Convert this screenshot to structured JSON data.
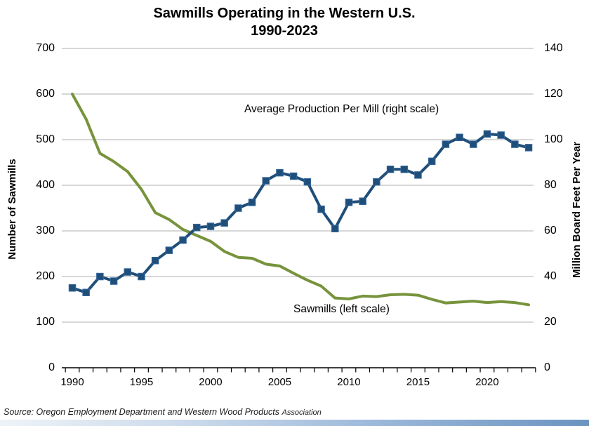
{
  "title": {
    "line1": "Sawmills Operating in the Western U.S.",
    "line2": "1990-2023"
  },
  "axes": {
    "left": {
      "label": "Number of Sawmills",
      "ticks": [
        700,
        600,
        500,
        400,
        300,
        200,
        100,
        0
      ]
    },
    "right": {
      "label": "Million Board Feet Per Year",
      "ticks": [
        140,
        120,
        100,
        80,
        60,
        40,
        20,
        0
      ]
    },
    "x": {
      "labeled_ticks": [
        1990,
        1995,
        2000,
        2005,
        2010,
        2015,
        2020
      ]
    }
  },
  "annotations": {
    "production": "Average Production Per Mill (right scale)",
    "sawmills": "Sawmills (left scale)"
  },
  "source": {
    "main": "Source: Oregon Employment Department and Western Wood Products",
    "small": "Association"
  },
  "colors": {
    "sawmills_line": "#77933C",
    "production_line": "#1F4E79",
    "production_marker_edge": "#35689E",
    "gridline": "#BFBFBF",
    "axis": "#000000"
  },
  "chart_data": {
    "type": "line",
    "title": "Sawmills Operating in the Western U.S. 1990-2023",
    "x": [
      1990,
      1991,
      1992,
      1993,
      1994,
      1995,
      1996,
      1997,
      1998,
      1999,
      2000,
      2001,
      2002,
      2003,
      2004,
      2005,
      2006,
      2007,
      2008,
      2009,
      2010,
      2011,
      2012,
      2013,
      2014,
      2015,
      2016,
      2017,
      2018,
      2019,
      2020,
      2021,
      2022,
      2023
    ],
    "series": [
      {
        "name": "Sawmills (left scale)",
        "axis": "left",
        "style": "solid-line-no-marker",
        "values": [
          600,
          545,
          470,
          452,
          430,
          391,
          340,
          325,
          303,
          290,
          277,
          255,
          242,
          240,
          227,
          223,
          207,
          192,
          179,
          153,
          151,
          157,
          156,
          160,
          161,
          159,
          150,
          142,
          144,
          146,
          143,
          145,
          143,
          138
        ]
      },
      {
        "name": "Average Production Per Mill (right scale)",
        "axis": "right",
        "style": "solid-line-square-markers",
        "values": [
          35,
          33,
          40,
          38,
          42,
          40,
          47,
          51.5,
          56,
          61.5,
          62,
          63.5,
          70,
          72.5,
          82,
          85.5,
          84,
          81.5,
          69.5,
          61,
          72.5,
          73,
          81.5,
          87,
          87,
          84.5,
          90.5,
          98,
          101,
          98,
          102.5,
          102,
          98,
          96.5
        ]
      }
    ],
    "left_axis": {
      "label": "Number of Sawmills",
      "min": 0,
      "max": 700,
      "step": 100
    },
    "right_axis": {
      "label": "Million Board Feet Per Year",
      "min": 0,
      "max": 140,
      "step": 20
    },
    "x_axis": {
      "min": 1990,
      "max": 2023,
      "labeled_ticks": [
        1990,
        1995,
        2000,
        2005,
        2010,
        2015,
        2020
      ]
    },
    "grid": "horizontal",
    "legend_position": "inline-annotations",
    "source": "Source: Oregon Employment Department and Western Wood Products Association"
  }
}
